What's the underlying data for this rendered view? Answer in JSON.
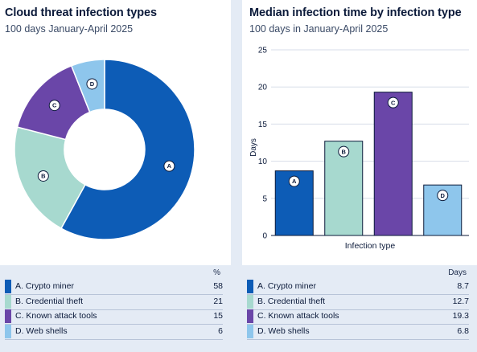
{
  "colors": {
    "A": "#0d5cb6",
    "B": "#a7d9cf",
    "C": "#6a46a8",
    "D": "#8ec6ec",
    "grid": "#d7dde8",
    "text": "#0b1a3a"
  },
  "left": {
    "title": "Cloud threat infection types",
    "subtitle": "100 days January-April 2025",
    "legend_header": "%",
    "legend": [
      {
        "label": "A. Crypto miner",
        "value": "58"
      },
      {
        "label": "B. Credential theft",
        "value": "21"
      },
      {
        "label": "C. Known attack tools",
        "value": "15"
      },
      {
        "label": "D. Web shells",
        "value": "6"
      }
    ]
  },
  "right": {
    "title": "Median infection time by infection type",
    "subtitle": "100 days in January-April 2025",
    "legend_header": "Days",
    "legend": [
      {
        "label": "A. Crypto miner",
        "value": "8.7"
      },
      {
        "label": "B. Credential theft",
        "value": "12.7"
      },
      {
        "label": "C. Known attack tools",
        "value": "19.3"
      },
      {
        "label": "D. Web shells",
        "value": "6.8"
      }
    ]
  },
  "chart_data": [
    {
      "type": "pie",
      "title": "Cloud threat infection types",
      "subtitle": "100 days January-April 2025",
      "unit": "%",
      "categories": [
        "A",
        "B",
        "C",
        "D"
      ],
      "series": [
        {
          "values": [
            58,
            21,
            15,
            6
          ]
        }
      ],
      "labels": [
        "A",
        "B",
        "C",
        "D"
      ]
    },
    {
      "type": "bar",
      "title": "Median infection time by infection type",
      "subtitle": "100 days in January-April 2025",
      "xlabel": "Infection type",
      "ylabel": "Days",
      "ylim": [
        0,
        25
      ],
      "yticks": [
        "0",
        "5",
        "10",
        "15",
        "20",
        "25"
      ],
      "categories": [
        "A",
        "B",
        "C",
        "D"
      ],
      "values": [
        8.7,
        12.7,
        19.3,
        6.8
      ],
      "grid": true
    }
  ]
}
